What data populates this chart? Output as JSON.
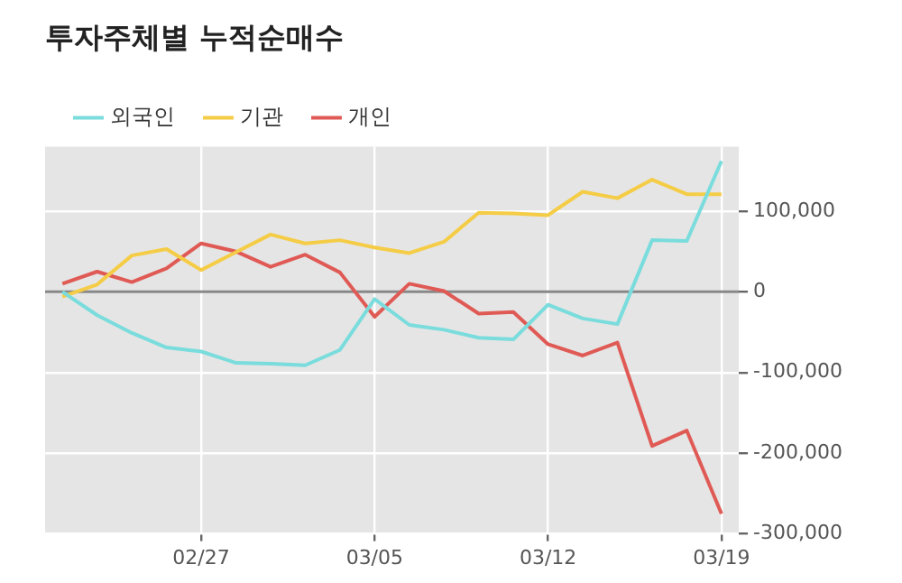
{
  "chart_data": {
    "type": "line",
    "title": "투자주체별 누적순매수",
    "categories": [
      null,
      null,
      null,
      null,
      "02/27",
      null,
      null,
      null,
      null,
      "03/05",
      null,
      null,
      null,
      null,
      "03/12",
      null,
      null,
      null,
      null,
      "03/19"
    ],
    "series": [
      {
        "name": "외국인",
        "color": "#7adcdc",
        "values": [
          0,
          -29000,
          -51000,
          -69000,
          -74000,
          -88000,
          -89000,
          -91000,
          -72000,
          -9000,
          -41000,
          -47000,
          -57000,
          -59000,
          -16000,
          -33000,
          -40000,
          64000,
          63000,
          162000
        ]
      },
      {
        "name": "기관",
        "color": "#f5cc45",
        "values": [
          -6000,
          9000,
          45000,
          53000,
          27000,
          49000,
          71000,
          60000,
          64000,
          55000,
          48000,
          62000,
          98000,
          97000,
          95000,
          124000,
          116000,
          139000,
          121000,
          121000
        ]
      },
      {
        "name": "개인",
        "color": "#e05a55",
        "values": [
          10000,
          25000,
          12000,
          29000,
          60000,
          50000,
          31000,
          46000,
          24000,
          -31000,
          10000,
          1000,
          -27000,
          -25000,
          -65000,
          -79000,
          -63000,
          -191000,
          -172000,
          -275000
        ]
      }
    ],
    "ylim": [
      -300000,
      180000
    ],
    "yticks": [
      {
        "value": -300000,
        "label": "-300,000"
      },
      {
        "value": -200000,
        "label": "-200,000"
      },
      {
        "value": -100000,
        "label": "-100,000"
      },
      {
        "value": 0,
        "label": "0"
      },
      {
        "value": 100000,
        "label": "100,000"
      }
    ],
    "ref_lines": [
      {
        "axis": "y",
        "value": 0,
        "label": null,
        "color": "#888888"
      }
    ],
    "grid": true,
    "legend": "top left",
    "marker": "none",
    "line_style": "solid"
  }
}
